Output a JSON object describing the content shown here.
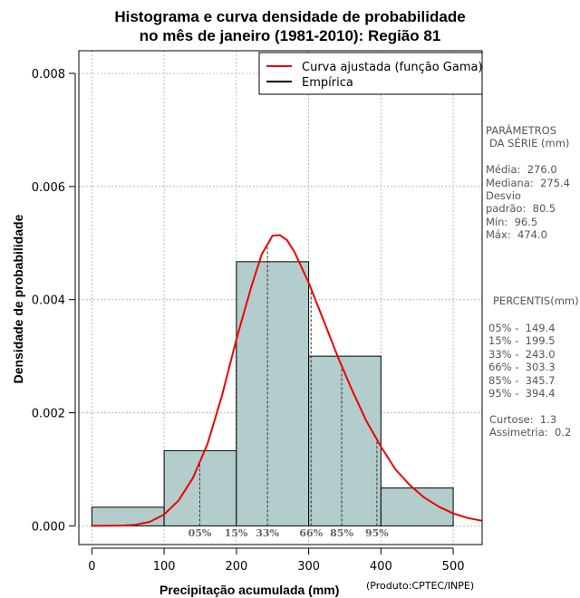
{
  "chart_data": {
    "type": "bar",
    "title_line1": "Histograma e curva densidade de probabilidade",
    "title_line2": "no mês de janeiro (1981-2010): Região 81",
    "xlabel": "Precipitação acumulada (mm)",
    "ylabel": "Densidade de probabilidade",
    "credit": "(Produto:CPTEC/INPE)",
    "xlim": [
      -18,
      540
    ],
    "ylim": [
      -0.00033,
      0.0084
    ],
    "x_ticks": [
      0,
      100,
      200,
      300,
      400,
      500
    ],
    "x_tick_labels": [
      "0",
      "100",
      "200",
      "300",
      "400",
      "500"
    ],
    "y_ticks": [
      0,
      0.002,
      0.004,
      0.006,
      0.008
    ],
    "y_tick_labels": [
      "0.000",
      "0.002",
      "0.004",
      "0.006",
      "0.008"
    ],
    "bins": [
      {
        "from": 0,
        "to": 100,
        "density": 0.00033
      },
      {
        "from": 100,
        "to": 200,
        "density": 0.00133
      },
      {
        "from": 200,
        "to": 300,
        "density": 0.00467
      },
      {
        "from": 300,
        "to": 400,
        "density": 0.003
      },
      {
        "from": 400,
        "to": 500,
        "density": 0.00067
      }
    ],
    "fitted_curve": {
      "name": "Curva ajustada (função Gama)",
      "color": "#ee0000",
      "points": [
        [
          0,
          0
        ],
        [
          40,
          4e-06
        ],
        [
          60,
          2e-05
        ],
        [
          80,
          7e-05
        ],
        [
          100,
          0.0002
        ],
        [
          120,
          0.00045
        ],
        [
          140,
          0.00085
        ],
        [
          160,
          0.00145
        ],
        [
          180,
          0.0023
        ],
        [
          200,
          0.0033
        ],
        [
          220,
          0.0042
        ],
        [
          235,
          0.0048
        ],
        [
          250,
          0.00513
        ],
        [
          260,
          0.00514
        ],
        [
          270,
          0.00505
        ],
        [
          280,
          0.00485
        ],
        [
          300,
          0.0043
        ],
        [
          320,
          0.00365
        ],
        [
          340,
          0.003
        ],
        [
          360,
          0.0024
        ],
        [
          380,
          0.00185
        ],
        [
          400,
          0.0014
        ],
        [
          420,
          0.001
        ],
        [
          440,
          0.00072
        ],
        [
          460,
          0.0005
        ],
        [
          480,
          0.00034
        ],
        [
          500,
          0.00022
        ],
        [
          520,
          0.00014
        ],
        [
          540,
          9e-05
        ]
      ]
    },
    "empirical": {
      "name": "Empírica",
      "color": "#000000"
    },
    "bar_fill": "#b3cccc",
    "percentile_markers": [
      {
        "label": "05%",
        "value": 149.4
      },
      {
        "label": "15%",
        "value": 199.5
      },
      {
        "label": "33%",
        "value": 243.0
      },
      {
        "label": "66%",
        "value": 303.3
      },
      {
        "label": "85%",
        "value": 345.7
      },
      {
        "label": "95%",
        "value": 394.4
      }
    ],
    "legend_position": "top-right",
    "grid": true
  },
  "stats": {
    "params_title1": "PARÂMETROS",
    "params_title2": "DA SÉRIE (mm)",
    "media": "Média:  276.0",
    "mediana": "Mediana:  275.4",
    "desvio1": "Desvio",
    "desvio2": "padrão:  80.5",
    "min": "Mín:  96.5",
    "max": "Máx:  474.0",
    "percentis_title": "PERCENTIS(mm)",
    "p05": "05% -  149.4",
    "p15": "15% -  199.5",
    "p33": "33% -  243.0",
    "p66": "66% -  303.3",
    "p85": "85% -  345.7",
    "p95": "95% -  394.4",
    "curtose": "Curtose:  1.3",
    "assimetria": "Assimetria:  0.2"
  }
}
